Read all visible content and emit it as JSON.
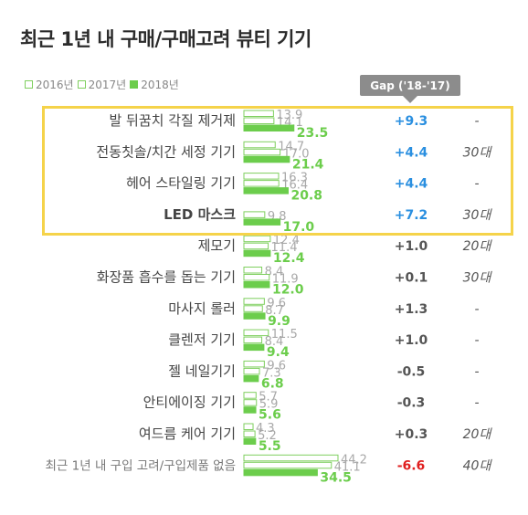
{
  "title": "최근 1년 내 구매/구매고려 뷰티 기기",
  "legend": [
    "2016년",
    "2017년",
    "2018년"
  ],
  "gap_header": "Gap ('18-'17)",
  "colors": {
    "bar_2018": "#6ccd4c",
    "bar_outline": "#7fcf5f",
    "highlight": "#f5d34a",
    "gap_positive_highlight": "#2a8fe0",
    "gap_negative": "#e02020"
  },
  "chart_data": {
    "type": "bar",
    "orientation": "horizontal",
    "categories": [
      "발 뒤꿈치 각질 제거제",
      "전동칫솔/치간 세정 기기",
      "헤어 스타일링 기기",
      "LED 마스크",
      "제모기",
      "화장품 흡수를 돕는 기기",
      "마사지 롤러",
      "클렌저 기기",
      "젤 네일기기",
      "안티에이징 기기",
      "여드름 케어 기기",
      "최근 1년 내 구입 고려/구입제품 없음"
    ],
    "series": [
      {
        "name": "2016년",
        "values": [
          13.9,
          14.7,
          16.3,
          null,
          12.4,
          8.4,
          9.6,
          11.5,
          9.6,
          5.7,
          4.3,
          44.2
        ]
      },
      {
        "name": "2017년",
        "values": [
          14.1,
          17.0,
          16.4,
          9.8,
          11.4,
          11.9,
          8.7,
          8.4,
          7.3,
          5.9,
          5.2,
          41.1
        ]
      },
      {
        "name": "2018년",
        "values": [
          23.5,
          21.4,
          20.8,
          17.0,
          12.4,
          12.0,
          9.9,
          9.4,
          6.8,
          5.6,
          5.5,
          34.5
        ]
      }
    ],
    "gap": [
      "+9.3",
      "+4.4",
      "+4.4",
      "+7.2",
      "+1.0",
      "+0.1",
      "+1.3",
      "+1.0",
      "-0.5",
      "-0.3",
      "+0.3",
      "-6.6"
    ],
    "age_group": [
      "-",
      "30대",
      "-",
      "30대",
      "20대",
      "30대",
      "-",
      "-",
      "-",
      "-",
      "20대",
      "40대"
    ],
    "highlighted_categories": [
      "발 뒤꿈치 각질 제거제",
      "전동칫솔/치간 세정 기기",
      "헤어 스타일링 기기",
      "LED 마스크"
    ],
    "xlim": [
      0,
      44.2
    ]
  }
}
